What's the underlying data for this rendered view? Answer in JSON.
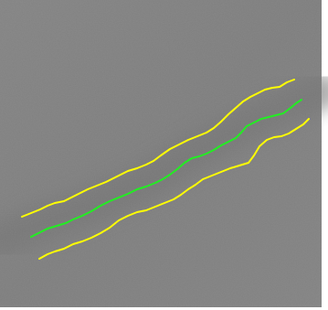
{
  "image": {
    "subject": "grayscale-scan-with-centerline-and-boundary-traces",
    "background_gray": "#7e7e7e",
    "band_gray": "#6c6c6c",
    "frame_color": "#ffffff"
  },
  "traces": [
    {
      "name": "upper-boundary",
      "role": "boundary",
      "color": "#ffff00"
    },
    {
      "name": "centerline",
      "role": "center",
      "color": "#22ee22"
    },
    {
      "name": "lower-boundary",
      "role": "boundary",
      "color": "#ffff00"
    }
  ]
}
